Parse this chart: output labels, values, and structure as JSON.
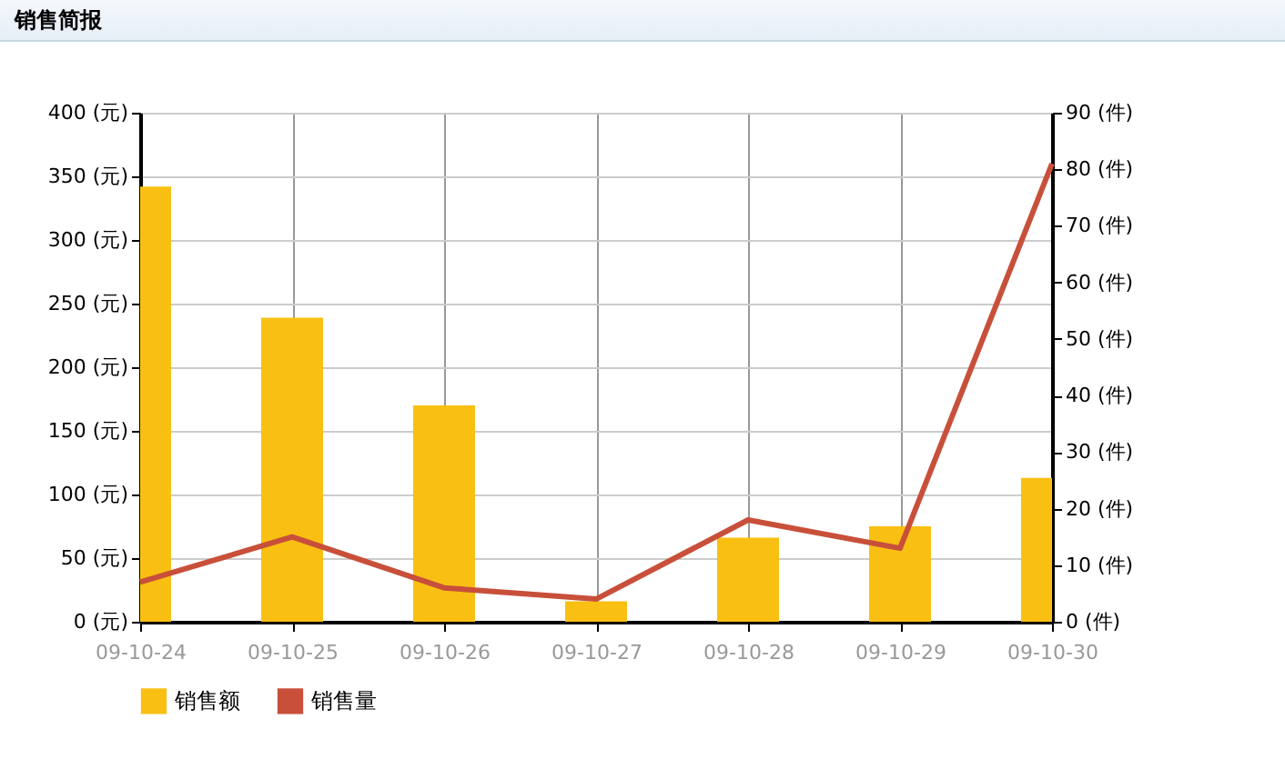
{
  "chart_data": {
    "type": "bar",
    "title": "销售简报",
    "categories": [
      "09-10-24",
      "09-10-25",
      "09-10-26",
      "09-10-27",
      "09-10-28",
      "09-10-29",
      "09-10-30"
    ],
    "series": [
      {
        "name": "销售额",
        "color": "#f9c013",
        "values": [
          342,
          239,
          170,
          16,
          66,
          75,
          113
        ]
      },
      {
        "name": "销售量",
        "type": "line",
        "axis": "y2",
        "color": "#c8503a",
        "values": [
          7,
          15,
          6,
          4,
          18,
          13,
          81
        ]
      }
    ],
    "ylim": [
      0,
      400
    ],
    "yticks": [
      {
        "value": 0,
        "label": "0 (元)"
      },
      {
        "value": 50,
        "label": "50 (元)"
      },
      {
        "value": 100,
        "label": "100 (元)"
      },
      {
        "value": 150,
        "label": "150 (元)"
      },
      {
        "value": 200,
        "label": "200 (元)"
      },
      {
        "value": 250,
        "label": "250 (元)"
      },
      {
        "value": 300,
        "label": "300 (元)"
      },
      {
        "value": 350,
        "label": "350 (元)"
      },
      {
        "value": 400,
        "label": "400 (元)"
      }
    ],
    "y2lim": [
      0,
      90
    ],
    "y2ticks": [
      {
        "value": 0,
        "label": "0 (件)"
      },
      {
        "value": 10,
        "label": "10 (件)"
      },
      {
        "value": 20,
        "label": "20 (件)"
      },
      {
        "value": 30,
        "label": "30 (件)"
      },
      {
        "value": 40,
        "label": "40 (件)"
      },
      {
        "value": 50,
        "label": "50 (件)"
      },
      {
        "value": 60,
        "label": "60 (件)"
      },
      {
        "value": 70,
        "label": "70 (件)"
      },
      {
        "value": 80,
        "label": "80 (件)"
      },
      {
        "value": 90,
        "label": "90 (件)"
      }
    ],
    "grid": true,
    "legend": "bottom left",
    "marker": "none",
    "line_style": "solid"
  }
}
